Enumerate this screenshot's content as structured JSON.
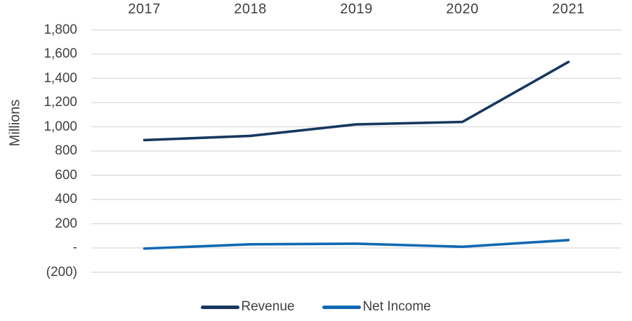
{
  "chart_data": {
    "type": "line",
    "title": "",
    "categories": [
      "2017",
      "2018",
      "2019",
      "2020",
      "2021"
    ],
    "series": [
      {
        "name": "Revenue",
        "color": "#17375E",
        "values": [
          890,
          925,
          1020,
          1040,
          1535
        ]
      },
      {
        "name": "Net Income",
        "color": "#1268B3",
        "values": [
          -5,
          30,
          35,
          10,
          65
        ]
      }
    ],
    "xlabel": "",
    "ylabel": "Millions",
    "ylim": [
      -200,
      1800
    ],
    "ytick_step": 200,
    "ytick_values": [
      1800,
      1600,
      1400,
      1200,
      1000,
      800,
      600,
      400,
      200,
      0,
      -200
    ],
    "ytick_labels": [
      "1,800",
      "1,600",
      "1,400",
      "1,200",
      "1,000",
      "800",
      "600",
      "400",
      "200",
      "-",
      "(200)"
    ],
    "grid": true,
    "gridline_color": "#D9D9D9",
    "text_color": "#404040",
    "legend_position": "bottom",
    "x_axis_label_position": "top"
  }
}
